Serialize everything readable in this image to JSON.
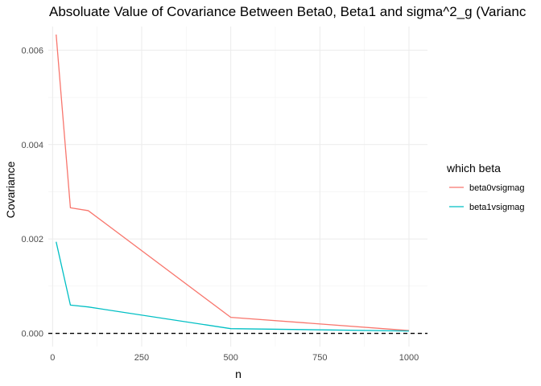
{
  "chart_data": {
    "type": "line",
    "title": "Absoluate Value of Covariance Between Beta0, Beta1 and sigma^2_g (Varianc",
    "xlabel": "n",
    "ylabel": "Covariance",
    "xlim": [
      -12,
      1052
    ],
    "ylim": [
      -0.00028,
      0.0065
    ],
    "x_ticks": [
      0,
      250,
      500,
      750,
      1000
    ],
    "x_tick_labels": [
      "0",
      "250",
      "500",
      "750",
      "1000"
    ],
    "y_ticks": [
      0,
      0.002,
      0.004,
      0.006
    ],
    "y_tick_labels": [
      "0.000",
      "0.002",
      "0.004",
      "0.006"
    ],
    "grid": true,
    "hline": {
      "y": 0,
      "style": "dashed",
      "color": "#000000"
    },
    "legend": {
      "title": "which beta",
      "position": "right"
    },
    "x": [
      10,
      50,
      100,
      500,
      1000
    ],
    "series": [
      {
        "name": "beta0vsigmag",
        "color": "#F8766D",
        "values": [
          0.00633,
          0.00266,
          0.0026,
          0.00034,
          6e-05
        ]
      },
      {
        "name": "beta1vsigmag",
        "color": "#00BFC4",
        "values": [
          0.00194,
          0.0006,
          0.00056,
          0.0001,
          5e-05
        ]
      }
    ]
  }
}
